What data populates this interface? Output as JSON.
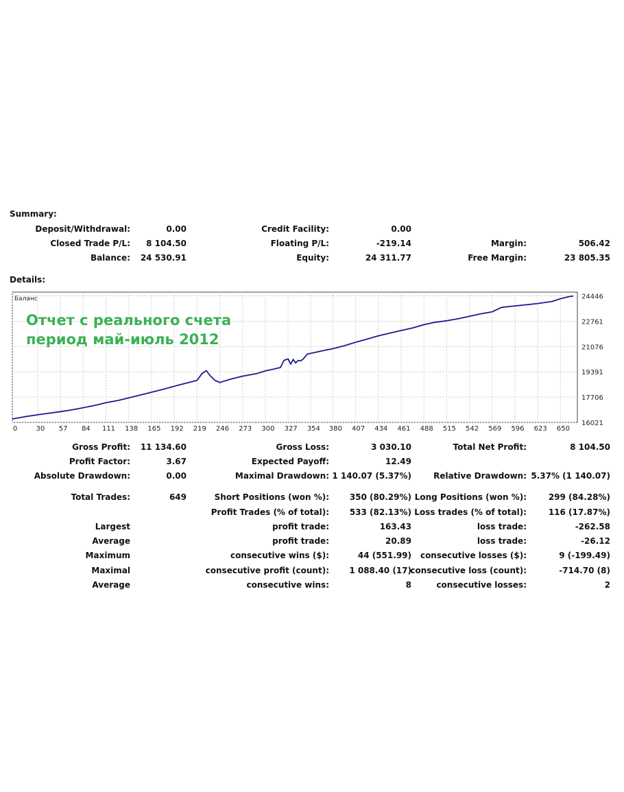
{
  "summary": {
    "title": "Summary:",
    "rows": [
      [
        {
          "label": "Deposit/Withdrawal:",
          "value": "0.00"
        },
        {
          "label": "Credit Facility:",
          "value": "0.00"
        },
        {
          "label": "",
          "value": ""
        }
      ],
      [
        {
          "label": "Closed Trade P/L:",
          "value": "8 104.50"
        },
        {
          "label": "Floating P/L:",
          "value": "-219.14"
        },
        {
          "label": "Margin:",
          "value": "506.42"
        }
      ],
      [
        {
          "label": "Balance:",
          "value": "24 530.91"
        },
        {
          "label": "Equity:",
          "value": "24 311.77"
        },
        {
          "label": "Free Margin:",
          "value": "23 805.35"
        }
      ]
    ]
  },
  "details_title": "Details:",
  "chart_data": {
    "type": "line",
    "legend": "Баланс",
    "overlay_text": [
      "Отчет с реального счета",
      "период май-июль 2012"
    ],
    "xticks": [
      0,
      30,
      57,
      84,
      111,
      138,
      165,
      192,
      219,
      246,
      273,
      300,
      327,
      354,
      380,
      407,
      434,
      461,
      488,
      515,
      542,
      569,
      596,
      623,
      650
    ],
    "yticks": [
      16021,
      17706,
      19391,
      21076,
      22761,
      24446
    ],
    "xlim": [
      0,
      670
    ],
    "ylim": [
      16021,
      24700
    ],
    "grid": true,
    "line_color": "#1a1a8c",
    "overlay_color": "#3cb054",
    "series": [
      {
        "x": [
          0,
          15,
          30,
          45,
          57,
          70,
          84,
          100,
          111,
          125,
          138,
          150,
          165,
          180,
          192,
          205,
          219,
          225,
          230,
          234,
          240,
          246,
          260,
          273,
          290,
          300,
          310,
          318,
          322,
          327,
          330,
          333,
          336,
          339,
          342,
          345,
          350,
          354,
          365,
          380,
          395,
          407,
          420,
          434,
          450,
          461,
          475,
          488,
          500,
          515,
          530,
          542,
          555,
          569,
          580,
          596,
          610,
          623,
          640,
          650,
          660,
          665
        ],
        "y": [
          16250,
          16400,
          16530,
          16640,
          16740,
          16850,
          17000,
          17180,
          17330,
          17480,
          17650,
          17820,
          18030,
          18240,
          18430,
          18620,
          18820,
          19280,
          19470,
          19170,
          18830,
          18680,
          18920,
          19100,
          19280,
          19450,
          19570,
          19680,
          20150,
          20250,
          19900,
          20220,
          19980,
          20150,
          20120,
          20250,
          20580,
          20620,
          20760,
          20930,
          21150,
          21360,
          21560,
          21790,
          22000,
          22140,
          22320,
          22530,
          22680,
          22790,
          22940,
          23090,
          23250,
          23390,
          23680,
          23780,
          23860,
          23940,
          24080,
          24260,
          24400,
          24440
        ]
      }
    ]
  },
  "details": {
    "rows1": [
      [
        {
          "label": "Gross Profit:",
          "value": "11 134.60"
        },
        {
          "label": "Gross Loss:",
          "value": "3 030.10"
        },
        {
          "label": "Total Net Profit:",
          "value": "8 104.50"
        }
      ],
      [
        {
          "label": "Profit Factor:",
          "value": "3.67"
        },
        {
          "label": "Expected Payoff:",
          "value": "12.49"
        },
        {
          "label": "",
          "value": ""
        }
      ],
      [
        {
          "label": "Absolute Drawdown:",
          "value": "0.00"
        },
        {
          "label": "Maximal Drawdown:",
          "value": "1 140.07 (5.37%)"
        },
        {
          "label": "Relative Drawdown:",
          "value": "5.37% (1 140.07)"
        }
      ]
    ],
    "rows2": [
      [
        {
          "label": "Total Trades:",
          "value": "649"
        },
        {
          "label": "Short Positions (won %):",
          "value": "350 (80.29%)"
        },
        {
          "label": "Long Positions (won %):",
          "value": "299 (84.28%)"
        }
      ],
      [
        {
          "label": "",
          "value": ""
        },
        {
          "label": "Profit Trades (% of total):",
          "value": "533 (82.13%)"
        },
        {
          "label": "Loss trades (% of total):",
          "value": "116 (17.87%)"
        }
      ],
      [
        {
          "label": "Largest",
          "value": ""
        },
        {
          "label": "profit trade:",
          "value": "163.43"
        },
        {
          "label": "loss trade:",
          "value": "-262.58"
        }
      ],
      [
        {
          "label": "Average",
          "value": ""
        },
        {
          "label": "profit trade:",
          "value": "20.89"
        },
        {
          "label": "loss trade:",
          "value": "-26.12"
        }
      ],
      [
        {
          "label": "Maximum",
          "value": ""
        },
        {
          "label": "consecutive wins ($):",
          "value": "44 (551.99)"
        },
        {
          "label": "consecutive losses ($):",
          "value": "9 (-199.49)"
        }
      ],
      [
        {
          "label": "Maximal",
          "value": ""
        },
        {
          "label": "consecutive profit (count):",
          "value": "1 088.40 (17)"
        },
        {
          "label": "consecutive loss (count):",
          "value": "-714.70 (8)"
        }
      ],
      [
        {
          "label": "Average",
          "value": ""
        },
        {
          "label": "consecutive wins:",
          "value": "8"
        },
        {
          "label": "consecutive losses:",
          "value": "2"
        }
      ]
    ]
  }
}
